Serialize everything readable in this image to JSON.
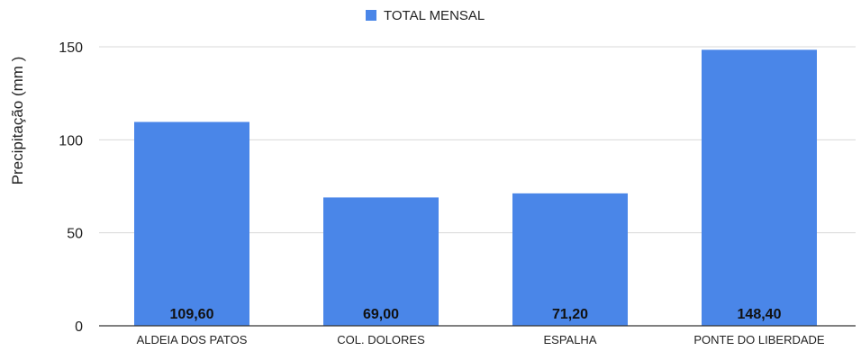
{
  "chart_data": {
    "type": "bar",
    "categories": [
      "ALDEIA DOS PATOS",
      "COL. DOLORES",
      "ESPALHA",
      "PONTE DO LIBERDADE"
    ],
    "series": [
      {
        "name": "TOTAL MENSAL",
        "values": [
          109.6,
          69.0,
          71.2,
          148.4
        ],
        "data_labels": [
          "109,60",
          "69,00",
          "71,20",
          "148,40"
        ],
        "color": "#4a86e8"
      }
    ],
    "ylabel": "Precipitação (mm )",
    "xlabel": "",
    "ylim": [
      0,
      150
    ],
    "yticks": [
      0,
      50,
      100,
      150
    ],
    "grid": true,
    "legend_position": "top-center"
  }
}
